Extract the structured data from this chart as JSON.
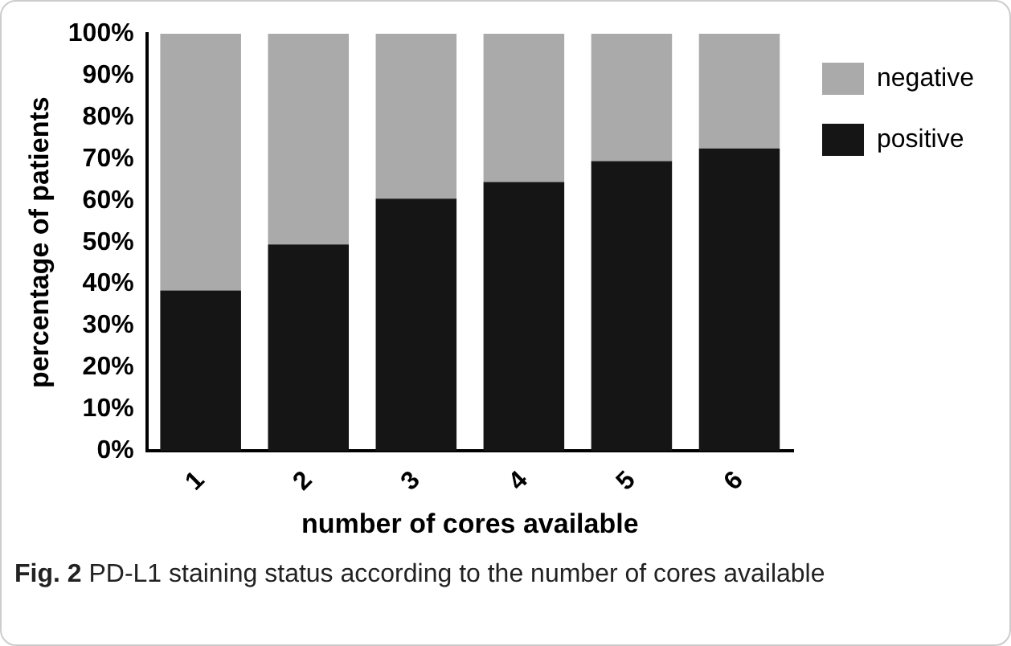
{
  "chart_data": {
    "type": "bar",
    "stacked": true,
    "xlabel": "number of cores available",
    "ylabel": "percentage of patients",
    "categories": [
      "1",
      "2",
      "3",
      "4",
      "5",
      "6"
    ],
    "series": [
      {
        "name": "positive",
        "color": "#151515",
        "values": [
          38.5,
          49.5,
          60.5,
          64.5,
          69.5,
          72.5
        ]
      },
      {
        "name": "negative",
        "color": "#aaaaaa",
        "values": [
          61.5,
          50.5,
          39.5,
          35.5,
          30.5,
          27.5
        ]
      }
    ],
    "ylim": [
      0,
      100
    ],
    "yticks": [
      {
        "value": 0,
        "label": "0%"
      },
      {
        "value": 10,
        "label": "10%"
      },
      {
        "value": 20,
        "label": "20%"
      },
      {
        "value": 30,
        "label": "30%"
      },
      {
        "value": 40,
        "label": "40%"
      },
      {
        "value": 50,
        "label": "50%"
      },
      {
        "value": 60,
        "label": "60%"
      },
      {
        "value": 70,
        "label": "70%"
      },
      {
        "value": 80,
        "label": "80%"
      },
      {
        "value": 90,
        "label": "90%"
      },
      {
        "value": 100,
        "label": "100%"
      }
    ],
    "grid": false,
    "legend": "top right",
    "annotations": [
      "Fig. 2 PD-L1 staining status according to the number of cores available"
    ]
  }
}
